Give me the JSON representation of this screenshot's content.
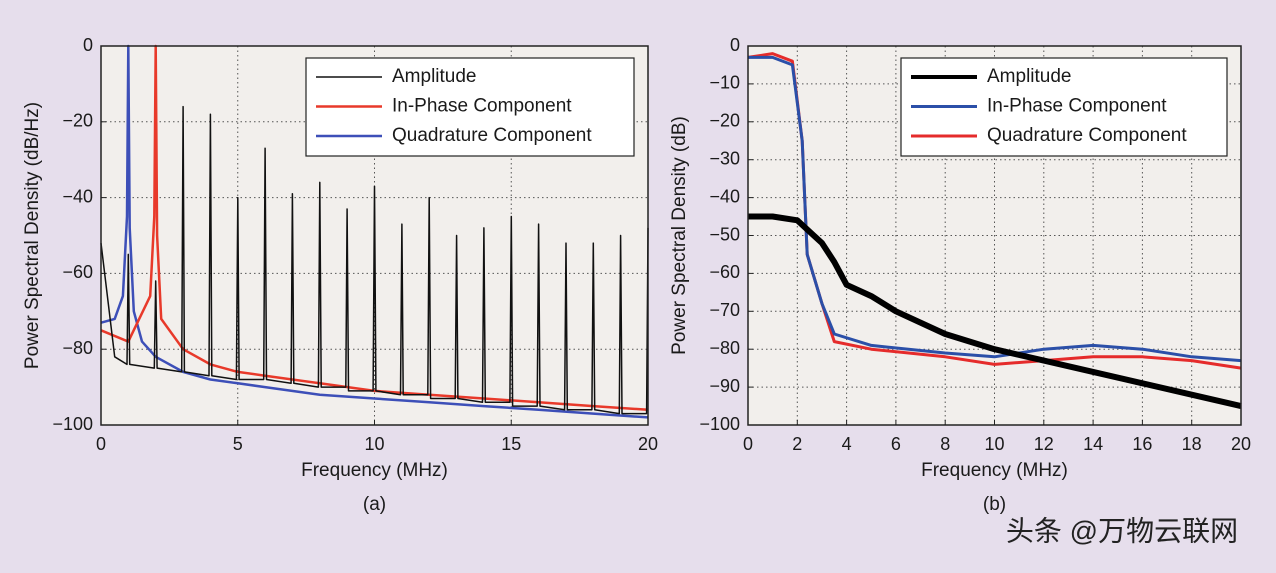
{
  "chart_data": [
    {
      "type": "line",
      "caption": "(a)",
      "x_label": "Frequency (MHz)",
      "y_label": "Power Spectral Density (dB/Hz)",
      "xlim": [
        0,
        20
      ],
      "xticks": [
        0,
        5,
        10,
        15,
        20
      ],
      "ylim": [
        -100,
        0
      ],
      "yticks": [
        0,
        {
          "value": -20,
          "label": "−20"
        },
        {
          "value": -40,
          "label": "−40"
        },
        {
          "value": -60,
          "label": "−60"
        },
        {
          "value": -80,
          "label": "−80"
        },
        {
          "value": -100,
          "label": "−100"
        }
      ],
      "grid": true,
      "legend": "upper right",
      "series": [
        {
          "name": "Amplitude",
          "color": "#111111",
          "x": [
            0,
            0.5,
            0.95,
            1,
            1.05,
            1.95,
            2,
            2.05,
            2.95,
            3,
            3.05,
            3.95,
            4,
            4.05,
            4.95,
            5,
            5.05,
            5.95,
            6,
            6.05,
            6.95,
            7,
            7.05,
            7.95,
            8,
            8.05,
            8.95,
            9,
            9.05,
            9.95,
            10,
            10.05,
            10.95,
            11,
            11.05,
            11.95,
            12,
            12.05,
            12.95,
            13,
            13.05,
            13.95,
            14,
            14.05,
            14.95,
            15,
            15.05,
            15.95,
            16,
            16.05,
            16.95,
            17,
            17.05,
            17.95,
            18,
            18.05,
            18.95,
            19,
            19.05,
            19.95,
            20
          ],
          "values": [
            -52,
            -82,
            -84,
            -55,
            -84,
            -85,
            -62,
            -85,
            -86,
            -16,
            -86,
            -87,
            -18,
            -87,
            -88,
            -40,
            -88,
            -88,
            -27,
            -88,
            -89,
            -39,
            -89,
            -90,
            -36,
            -90,
            -90,
            -43,
            -91,
            -91,
            -37,
            -91,
            -92,
            -47,
            -92,
            -92,
            -40,
            -93,
            -93,
            -50,
            -93,
            -94,
            -48,
            -94,
            -94,
            -45,
            -95,
            -95,
            -47,
            -95,
            -96,
            -52,
            -96,
            -96,
            -52,
            -96,
            -97,
            -50,
            -97,
            -97,
            -48
          ]
        },
        {
          "name": "In-Phase Component",
          "color": "#e8392a",
          "x": [
            0,
            1,
            1.8,
            1.95,
            2,
            2.05,
            2.2,
            3,
            4,
            5,
            6,
            8,
            10,
            12,
            14,
            16,
            18,
            20
          ],
          "values": [
            -75,
            -78,
            -66,
            -45,
            0,
            -50,
            -72,
            -80,
            -84,
            -86,
            -87,
            -89,
            -91,
            -92,
            -93,
            -94,
            -95,
            -96
          ]
        },
        {
          "name": "Quadrature Component",
          "color": "#3d4fb8",
          "x": [
            0,
            0.5,
            0.8,
            0.95,
            1,
            1.05,
            1.2,
            1.5,
            2,
            3,
            4,
            5,
            6,
            8,
            10,
            12,
            14,
            16,
            18,
            20
          ],
          "values": [
            -73,
            -72,
            -66,
            -45,
            0,
            -48,
            -70,
            -78,
            -82,
            -86,
            -88,
            -89,
            -90,
            -92,
            -93,
            -94,
            -95,
            -96,
            -97,
            -98
          ]
        }
      ]
    },
    {
      "type": "line",
      "caption": "(b)",
      "x_label": "Frequency (MHz)",
      "y_label": "Power Spectral Density (dB)",
      "xlim": [
        0,
        20
      ],
      "xticks": [
        0,
        2,
        4,
        6,
        8,
        10,
        12,
        14,
        16,
        18,
        20
      ],
      "ylim": [
        -100,
        0
      ],
      "yticks": [
        0,
        {
          "value": -10,
          "label": "−10"
        },
        {
          "value": -20,
          "label": "−20"
        },
        {
          "value": -30,
          "label": "−30"
        },
        {
          "value": -40,
          "label": "−40"
        },
        {
          "value": -50,
          "label": "−50"
        },
        {
          "value": -60,
          "label": "−60"
        },
        {
          "value": -70,
          "label": "−70"
        },
        {
          "value": -80,
          "label": "−80"
        },
        {
          "value": -90,
          "label": "−90"
        },
        {
          "value": -100,
          "label": "−100"
        }
      ],
      "grid": true,
      "legend": "upper right",
      "series": [
        {
          "name": "Amplitude",
          "color": "#000000",
          "x": [
            0,
            1,
            2,
            2.5,
            3,
            3.5,
            4,
            5,
            6,
            8,
            10,
            12,
            14,
            16,
            18,
            20
          ],
          "values": [
            -45,
            -45,
            -46,
            -49,
            -52,
            -57,
            -63,
            -66,
            -70,
            -76,
            -80,
            -83,
            -86,
            -89,
            -92,
            -95
          ]
        },
        {
          "name": "In-Phase Component",
          "color": "#2b4fa8",
          "x": [
            0,
            1,
            1.8,
            2.2,
            2.4,
            3,
            3.5,
            5,
            8,
            10,
            12,
            14,
            16,
            18,
            20
          ],
          "values": [
            -3,
            -3,
            -5,
            -25,
            -55,
            -68,
            -76,
            -79,
            -81,
            -82,
            -80,
            -79,
            -80,
            -82,
            -83
          ]
        },
        {
          "name": "Quadrature Component",
          "color": "#e52b2b",
          "x": [
            0,
            1,
            1.8,
            2.2,
            2.4,
            3,
            3.5,
            5,
            8,
            10,
            12,
            14,
            16,
            18,
            20
          ],
          "values": [
            -3,
            -2,
            -4,
            -25,
            -55,
            -68,
            -78,
            -80,
            -82,
            -84,
            -83,
            -82,
            -82,
            -83,
            -85
          ]
        }
      ]
    }
  ],
  "watermark": "头条 @万物云联网"
}
